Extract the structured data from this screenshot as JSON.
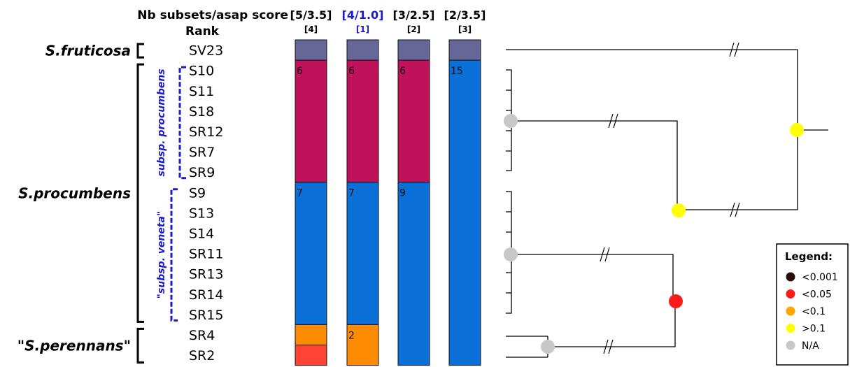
{
  "chart_data": {
    "type": "table",
    "header": {
      "score_label": "Nb subsets/asap score",
      "rank_label": "Rank"
    },
    "columns": [
      {
        "score": "[5/3.5]",
        "rank": "[4]",
        "highlight": false,
        "segments": [
          {
            "from": "SV23",
            "to": "SV23",
            "color": "#666699",
            "label": ""
          },
          {
            "from": "S10",
            "to": "SR9",
            "color": "#c0125a",
            "label": "6"
          },
          {
            "from": "S9",
            "to": "SR15",
            "color": "#0a6fd6",
            "label": "7"
          },
          {
            "from": "SR4",
            "to": "SR4",
            "color": "#ff8c00",
            "label": ""
          },
          {
            "from": "SR2",
            "to": "SR2",
            "color": "#ff4433",
            "label": ""
          }
        ]
      },
      {
        "score": "[4/1.0]",
        "rank": "[1]",
        "highlight": true,
        "segments": [
          {
            "from": "SV23",
            "to": "SV23",
            "color": "#666699",
            "label": ""
          },
          {
            "from": "S10",
            "to": "SR9",
            "color": "#c0125a",
            "label": "6"
          },
          {
            "from": "S9",
            "to": "SR15",
            "color": "#0a6fd6",
            "label": "7"
          },
          {
            "from": "SR4",
            "to": "SR2",
            "color": "#ff8c00",
            "label": "2"
          }
        ]
      },
      {
        "score": "[3/2.5]",
        "rank": "[2]",
        "highlight": false,
        "segments": [
          {
            "from": "SV23",
            "to": "SV23",
            "color": "#666699",
            "label": ""
          },
          {
            "from": "S10",
            "to": "SR9",
            "color": "#c0125a",
            "label": "6"
          },
          {
            "from": "S9",
            "to": "SR2",
            "color": "#0a6fd6",
            "label": "9"
          }
        ]
      },
      {
        "score": "[2/3.5]",
        "rank": "[3]",
        "highlight": false,
        "segments": [
          {
            "from": "SV23",
            "to": "SV23",
            "color": "#666699",
            "label": ""
          },
          {
            "from": "S10",
            "to": "SR2",
            "color": "#0a6fd6",
            "label": "15"
          }
        ]
      }
    ],
    "samples": [
      "SV23",
      "S10",
      "S11",
      "S18",
      "SR12",
      "SR7",
      "SR9",
      "S9",
      "S13",
      "S14",
      "SR11",
      "SR13",
      "SR14",
      "SR15",
      "SR4",
      "SR2"
    ],
    "species": [
      {
        "name": "S.fruticosa",
        "from": "SV23",
        "to": "SV23"
      },
      {
        "name": "S.procumbens",
        "from": "S10",
        "to": "SR15"
      },
      {
        "name": "\"S.perennans\"",
        "from": "SR4",
        "to": "SR2"
      }
    ],
    "subspecies": [
      {
        "name": "subsp. procumbens",
        "from": "S10",
        "to": "SR9"
      },
      {
        "name": "\"subsp. veneta\"",
        "from": "S9",
        "to": "SR15"
      }
    ],
    "tree_nodes": [
      {
        "id": "procumbens-clade",
        "color": "#c8c8c8"
      },
      {
        "id": "veneta-clade",
        "color": "#c8c8c8"
      },
      {
        "id": "perennans-clade",
        "color": "#c8c8c8"
      },
      {
        "id": "veneta-perennans",
        "color": "#ff1a1a"
      },
      {
        "id": "procumbens-group",
        "color": "#ffff00"
      },
      {
        "id": "root",
        "color": "#ffff00"
      }
    ],
    "legend": {
      "title": "Legend:",
      "items": [
        {
          "label": "<0.001",
          "color": "#2b0a0a"
        },
        {
          "label": "<0.05",
          "color": "#ff1a1a"
        },
        {
          "label": "<0.1",
          "color": "#ffa500"
        },
        {
          "label": ">0.1",
          "color": "#ffff00"
        },
        {
          "label": "N/A",
          "color": "#c8c8c8"
        }
      ]
    }
  }
}
